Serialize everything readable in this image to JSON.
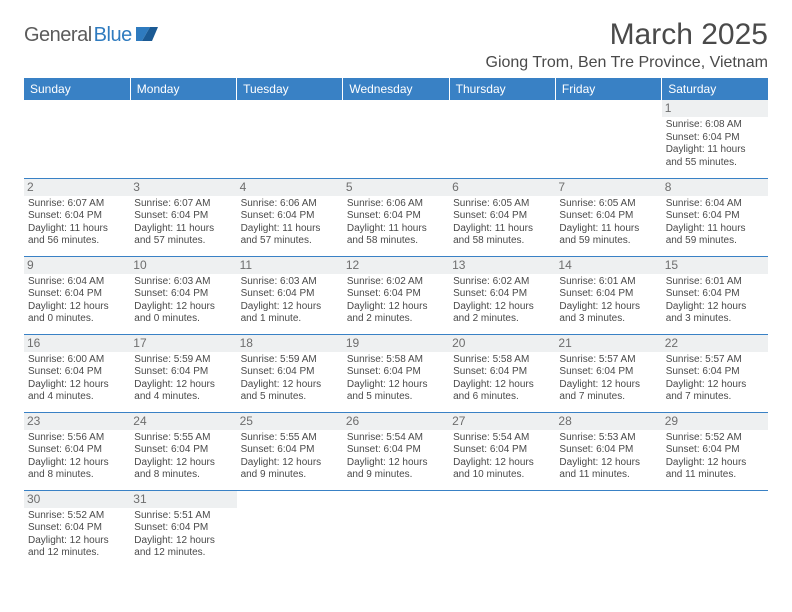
{
  "logo": {
    "general": "General",
    "blue": "Blue"
  },
  "title": "March 2025",
  "location": "Giong Trom, Ben Tre Province, Vietnam",
  "colors": {
    "header_bg": "#3981c5",
    "header_text": "#ffffff",
    "border": "#3981c5",
    "daynum_bg": "#eef0f1",
    "text": "#4a4a4a",
    "logo_gray": "#5b5b5b",
    "logo_blue": "#2f7bbf"
  },
  "day_headers": [
    "Sunday",
    "Monday",
    "Tuesday",
    "Wednesday",
    "Thursday",
    "Friday",
    "Saturday"
  ],
  "weeks": [
    [
      {
        "day": "",
        "sunrise": "",
        "sunset": "",
        "daylight": ""
      },
      {
        "day": "",
        "sunrise": "",
        "sunset": "",
        "daylight": ""
      },
      {
        "day": "",
        "sunrise": "",
        "sunset": "",
        "daylight": ""
      },
      {
        "day": "",
        "sunrise": "",
        "sunset": "",
        "daylight": ""
      },
      {
        "day": "",
        "sunrise": "",
        "sunset": "",
        "daylight": ""
      },
      {
        "day": "",
        "sunrise": "",
        "sunset": "",
        "daylight": ""
      },
      {
        "day": "1",
        "sunrise": "Sunrise: 6:08 AM",
        "sunset": "Sunset: 6:04 PM",
        "daylight": "Daylight: 11 hours and 55 minutes."
      }
    ],
    [
      {
        "day": "2",
        "sunrise": "Sunrise: 6:07 AM",
        "sunset": "Sunset: 6:04 PM",
        "daylight": "Daylight: 11 hours and 56 minutes."
      },
      {
        "day": "3",
        "sunrise": "Sunrise: 6:07 AM",
        "sunset": "Sunset: 6:04 PM",
        "daylight": "Daylight: 11 hours and 57 minutes."
      },
      {
        "day": "4",
        "sunrise": "Sunrise: 6:06 AM",
        "sunset": "Sunset: 6:04 PM",
        "daylight": "Daylight: 11 hours and 57 minutes."
      },
      {
        "day": "5",
        "sunrise": "Sunrise: 6:06 AM",
        "sunset": "Sunset: 6:04 PM",
        "daylight": "Daylight: 11 hours and 58 minutes."
      },
      {
        "day": "6",
        "sunrise": "Sunrise: 6:05 AM",
        "sunset": "Sunset: 6:04 PM",
        "daylight": "Daylight: 11 hours and 58 minutes."
      },
      {
        "day": "7",
        "sunrise": "Sunrise: 6:05 AM",
        "sunset": "Sunset: 6:04 PM",
        "daylight": "Daylight: 11 hours and 59 minutes."
      },
      {
        "day": "8",
        "sunrise": "Sunrise: 6:04 AM",
        "sunset": "Sunset: 6:04 PM",
        "daylight": "Daylight: 11 hours and 59 minutes."
      }
    ],
    [
      {
        "day": "9",
        "sunrise": "Sunrise: 6:04 AM",
        "sunset": "Sunset: 6:04 PM",
        "daylight": "Daylight: 12 hours and 0 minutes."
      },
      {
        "day": "10",
        "sunrise": "Sunrise: 6:03 AM",
        "sunset": "Sunset: 6:04 PM",
        "daylight": "Daylight: 12 hours and 0 minutes."
      },
      {
        "day": "11",
        "sunrise": "Sunrise: 6:03 AM",
        "sunset": "Sunset: 6:04 PM",
        "daylight": "Daylight: 12 hours and 1 minute."
      },
      {
        "day": "12",
        "sunrise": "Sunrise: 6:02 AM",
        "sunset": "Sunset: 6:04 PM",
        "daylight": "Daylight: 12 hours and 2 minutes."
      },
      {
        "day": "13",
        "sunrise": "Sunrise: 6:02 AM",
        "sunset": "Sunset: 6:04 PM",
        "daylight": "Daylight: 12 hours and 2 minutes."
      },
      {
        "day": "14",
        "sunrise": "Sunrise: 6:01 AM",
        "sunset": "Sunset: 6:04 PM",
        "daylight": "Daylight: 12 hours and 3 minutes."
      },
      {
        "day": "15",
        "sunrise": "Sunrise: 6:01 AM",
        "sunset": "Sunset: 6:04 PM",
        "daylight": "Daylight: 12 hours and 3 minutes."
      }
    ],
    [
      {
        "day": "16",
        "sunrise": "Sunrise: 6:00 AM",
        "sunset": "Sunset: 6:04 PM",
        "daylight": "Daylight: 12 hours and 4 minutes."
      },
      {
        "day": "17",
        "sunrise": "Sunrise: 5:59 AM",
        "sunset": "Sunset: 6:04 PM",
        "daylight": "Daylight: 12 hours and 4 minutes."
      },
      {
        "day": "18",
        "sunrise": "Sunrise: 5:59 AM",
        "sunset": "Sunset: 6:04 PM",
        "daylight": "Daylight: 12 hours and 5 minutes."
      },
      {
        "day": "19",
        "sunrise": "Sunrise: 5:58 AM",
        "sunset": "Sunset: 6:04 PM",
        "daylight": "Daylight: 12 hours and 5 minutes."
      },
      {
        "day": "20",
        "sunrise": "Sunrise: 5:58 AM",
        "sunset": "Sunset: 6:04 PM",
        "daylight": "Daylight: 12 hours and 6 minutes."
      },
      {
        "day": "21",
        "sunrise": "Sunrise: 5:57 AM",
        "sunset": "Sunset: 6:04 PM",
        "daylight": "Daylight: 12 hours and 7 minutes."
      },
      {
        "day": "22",
        "sunrise": "Sunrise: 5:57 AM",
        "sunset": "Sunset: 6:04 PM",
        "daylight": "Daylight: 12 hours and 7 minutes."
      }
    ],
    [
      {
        "day": "23",
        "sunrise": "Sunrise: 5:56 AM",
        "sunset": "Sunset: 6:04 PM",
        "daylight": "Daylight: 12 hours and 8 minutes."
      },
      {
        "day": "24",
        "sunrise": "Sunrise: 5:55 AM",
        "sunset": "Sunset: 6:04 PM",
        "daylight": "Daylight: 12 hours and 8 minutes."
      },
      {
        "day": "25",
        "sunrise": "Sunrise: 5:55 AM",
        "sunset": "Sunset: 6:04 PM",
        "daylight": "Daylight: 12 hours and 9 minutes."
      },
      {
        "day": "26",
        "sunrise": "Sunrise: 5:54 AM",
        "sunset": "Sunset: 6:04 PM",
        "daylight": "Daylight: 12 hours and 9 minutes."
      },
      {
        "day": "27",
        "sunrise": "Sunrise: 5:54 AM",
        "sunset": "Sunset: 6:04 PM",
        "daylight": "Daylight: 12 hours and 10 minutes."
      },
      {
        "day": "28",
        "sunrise": "Sunrise: 5:53 AM",
        "sunset": "Sunset: 6:04 PM",
        "daylight": "Daylight: 12 hours and 11 minutes."
      },
      {
        "day": "29",
        "sunrise": "Sunrise: 5:52 AM",
        "sunset": "Sunset: 6:04 PM",
        "daylight": "Daylight: 12 hours and 11 minutes."
      }
    ],
    [
      {
        "day": "30",
        "sunrise": "Sunrise: 5:52 AM",
        "sunset": "Sunset: 6:04 PM",
        "daylight": "Daylight: 12 hours and 12 minutes."
      },
      {
        "day": "31",
        "sunrise": "Sunrise: 5:51 AM",
        "sunset": "Sunset: 6:04 PM",
        "daylight": "Daylight: 12 hours and 12 minutes."
      },
      {
        "day": "",
        "sunrise": "",
        "sunset": "",
        "daylight": ""
      },
      {
        "day": "",
        "sunrise": "",
        "sunset": "",
        "daylight": ""
      },
      {
        "day": "",
        "sunrise": "",
        "sunset": "",
        "daylight": ""
      },
      {
        "day": "",
        "sunrise": "",
        "sunset": "",
        "daylight": ""
      },
      {
        "day": "",
        "sunrise": "",
        "sunset": "",
        "daylight": ""
      }
    ]
  ]
}
